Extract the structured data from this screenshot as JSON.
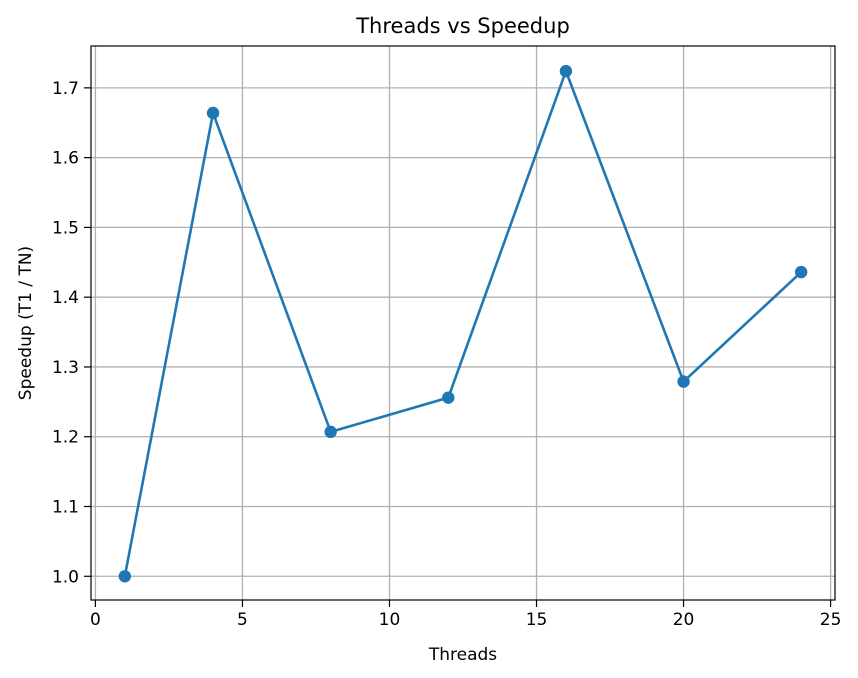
{
  "chart_data": {
    "type": "line",
    "title": "Threads vs Speedup",
    "xlabel": "Threads",
    "ylabel": "Speedup (T1 / TN)",
    "x": [
      1,
      4,
      8,
      12,
      16,
      20,
      24
    ],
    "series": [
      {
        "values": [
          1.0,
          1.664,
          1.207,
          1.256,
          1.724,
          1.279,
          1.436
        ],
        "color": "#1f77b4",
        "marker": "circle"
      }
    ],
    "xlim": [
      -0.15,
      25.15
    ],
    "ylim": [
      0.966,
      1.76
    ],
    "xticks": [
      0,
      5,
      10,
      15,
      20,
      25
    ],
    "xtick_labels": [
      "0",
      "5",
      "10",
      "15",
      "20",
      "25"
    ],
    "yticks": [
      1.0,
      1.1,
      1.2,
      1.3,
      1.4,
      1.5,
      1.6,
      1.7
    ],
    "ytick_labels": [
      "1.0",
      "1.1",
      "1.2",
      "1.3",
      "1.4",
      "1.5",
      "1.6",
      "1.7"
    ],
    "grid": true,
    "legend": "none"
  }
}
